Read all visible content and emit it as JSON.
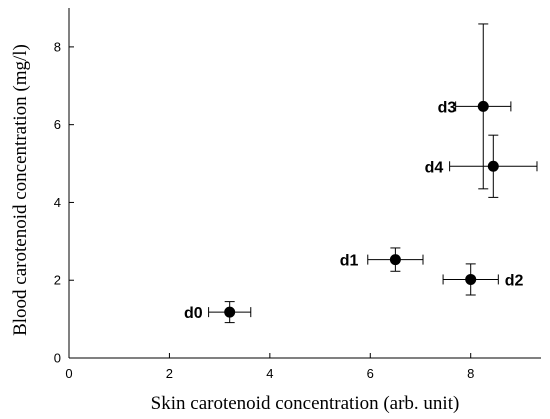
{
  "chart_data": {
    "type": "scatter",
    "title": "",
    "xlabel": "Skin carotenoid concentration (arb. unit)",
    "ylabel": "Blood carotenoid concentration (mg/l)",
    "xlim": [
      0,
      9.4
    ],
    "ylim": [
      0,
      9
    ],
    "xticks": [
      0,
      2,
      4,
      6,
      8
    ],
    "yticks": [
      0,
      2,
      4,
      6,
      8
    ],
    "grid": false,
    "points": [
      {
        "label": "d0",
        "x": 3.2,
        "y": 1.18,
        "xerr": 0.42,
        "yerr": 0.27
      },
      {
        "label": "d1",
        "x": 6.5,
        "y": 2.53,
        "xerr": 0.55,
        "yerr": 0.3
      },
      {
        "label": "d2",
        "x": 8.0,
        "y": 2.02,
        "xerr": 0.55,
        "yerr": 0.4
      },
      {
        "label": "d3",
        "x": 8.25,
        "y": 6.47,
        "xerr": 0.55,
        "yerr": 2.12
      },
      {
        "label": "d4",
        "x": 8.45,
        "y": 4.93,
        "xerr": 0.87,
        "yerr": 0.8
      }
    ]
  }
}
